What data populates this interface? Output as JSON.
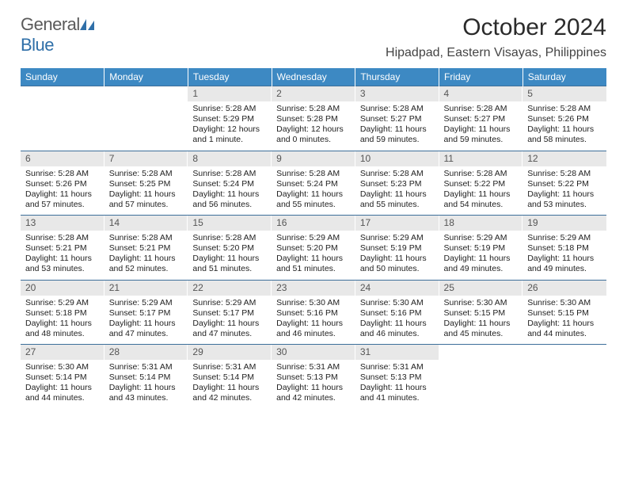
{
  "logo": {
    "text1": "General",
    "text2": "Blue"
  },
  "title": "October 2024",
  "location": "Hipadpad, Eastern Visayas, Philippines",
  "colors": {
    "header_bg": "#3d89c3",
    "header_fg": "#ffffff",
    "week_border": "#3d6f9a",
    "daynum_bg": "#e8e8e8",
    "daynum_fg": "#555555",
    "body_text": "#222222",
    "logo_gray": "#5a5a5a",
    "logo_blue": "#2f6fa8"
  },
  "columns": [
    "Sunday",
    "Monday",
    "Tuesday",
    "Wednesday",
    "Thursday",
    "Friday",
    "Saturday"
  ],
  "weeks": [
    [
      {
        "n": "",
        "sr": "",
        "ss": "",
        "dl1": "",
        "dl2": ""
      },
      {
        "n": "",
        "sr": "",
        "ss": "",
        "dl1": "",
        "dl2": ""
      },
      {
        "n": "1",
        "sr": "Sunrise: 5:28 AM",
        "ss": "Sunset: 5:29 PM",
        "dl1": "Daylight: 12 hours",
        "dl2": "and 1 minute."
      },
      {
        "n": "2",
        "sr": "Sunrise: 5:28 AM",
        "ss": "Sunset: 5:28 PM",
        "dl1": "Daylight: 12 hours",
        "dl2": "and 0 minutes."
      },
      {
        "n": "3",
        "sr": "Sunrise: 5:28 AM",
        "ss": "Sunset: 5:27 PM",
        "dl1": "Daylight: 11 hours",
        "dl2": "and 59 minutes."
      },
      {
        "n": "4",
        "sr": "Sunrise: 5:28 AM",
        "ss": "Sunset: 5:27 PM",
        "dl1": "Daylight: 11 hours",
        "dl2": "and 59 minutes."
      },
      {
        "n": "5",
        "sr": "Sunrise: 5:28 AM",
        "ss": "Sunset: 5:26 PM",
        "dl1": "Daylight: 11 hours",
        "dl2": "and 58 minutes."
      }
    ],
    [
      {
        "n": "6",
        "sr": "Sunrise: 5:28 AM",
        "ss": "Sunset: 5:26 PM",
        "dl1": "Daylight: 11 hours",
        "dl2": "and 57 minutes."
      },
      {
        "n": "7",
        "sr": "Sunrise: 5:28 AM",
        "ss": "Sunset: 5:25 PM",
        "dl1": "Daylight: 11 hours",
        "dl2": "and 57 minutes."
      },
      {
        "n": "8",
        "sr": "Sunrise: 5:28 AM",
        "ss": "Sunset: 5:24 PM",
        "dl1": "Daylight: 11 hours",
        "dl2": "and 56 minutes."
      },
      {
        "n": "9",
        "sr": "Sunrise: 5:28 AM",
        "ss": "Sunset: 5:24 PM",
        "dl1": "Daylight: 11 hours",
        "dl2": "and 55 minutes."
      },
      {
        "n": "10",
        "sr": "Sunrise: 5:28 AM",
        "ss": "Sunset: 5:23 PM",
        "dl1": "Daylight: 11 hours",
        "dl2": "and 55 minutes."
      },
      {
        "n": "11",
        "sr": "Sunrise: 5:28 AM",
        "ss": "Sunset: 5:22 PM",
        "dl1": "Daylight: 11 hours",
        "dl2": "and 54 minutes."
      },
      {
        "n": "12",
        "sr": "Sunrise: 5:28 AM",
        "ss": "Sunset: 5:22 PM",
        "dl1": "Daylight: 11 hours",
        "dl2": "and 53 minutes."
      }
    ],
    [
      {
        "n": "13",
        "sr": "Sunrise: 5:28 AM",
        "ss": "Sunset: 5:21 PM",
        "dl1": "Daylight: 11 hours",
        "dl2": "and 53 minutes."
      },
      {
        "n": "14",
        "sr": "Sunrise: 5:28 AM",
        "ss": "Sunset: 5:21 PM",
        "dl1": "Daylight: 11 hours",
        "dl2": "and 52 minutes."
      },
      {
        "n": "15",
        "sr": "Sunrise: 5:28 AM",
        "ss": "Sunset: 5:20 PM",
        "dl1": "Daylight: 11 hours",
        "dl2": "and 51 minutes."
      },
      {
        "n": "16",
        "sr": "Sunrise: 5:29 AM",
        "ss": "Sunset: 5:20 PM",
        "dl1": "Daylight: 11 hours",
        "dl2": "and 51 minutes."
      },
      {
        "n": "17",
        "sr": "Sunrise: 5:29 AM",
        "ss": "Sunset: 5:19 PM",
        "dl1": "Daylight: 11 hours",
        "dl2": "and 50 minutes."
      },
      {
        "n": "18",
        "sr": "Sunrise: 5:29 AM",
        "ss": "Sunset: 5:19 PM",
        "dl1": "Daylight: 11 hours",
        "dl2": "and 49 minutes."
      },
      {
        "n": "19",
        "sr": "Sunrise: 5:29 AM",
        "ss": "Sunset: 5:18 PM",
        "dl1": "Daylight: 11 hours",
        "dl2": "and 49 minutes."
      }
    ],
    [
      {
        "n": "20",
        "sr": "Sunrise: 5:29 AM",
        "ss": "Sunset: 5:18 PM",
        "dl1": "Daylight: 11 hours",
        "dl2": "and 48 minutes."
      },
      {
        "n": "21",
        "sr": "Sunrise: 5:29 AM",
        "ss": "Sunset: 5:17 PM",
        "dl1": "Daylight: 11 hours",
        "dl2": "and 47 minutes."
      },
      {
        "n": "22",
        "sr": "Sunrise: 5:29 AM",
        "ss": "Sunset: 5:17 PM",
        "dl1": "Daylight: 11 hours",
        "dl2": "and 47 minutes."
      },
      {
        "n": "23",
        "sr": "Sunrise: 5:30 AM",
        "ss": "Sunset: 5:16 PM",
        "dl1": "Daylight: 11 hours",
        "dl2": "and 46 minutes."
      },
      {
        "n": "24",
        "sr": "Sunrise: 5:30 AM",
        "ss": "Sunset: 5:16 PM",
        "dl1": "Daylight: 11 hours",
        "dl2": "and 46 minutes."
      },
      {
        "n": "25",
        "sr": "Sunrise: 5:30 AM",
        "ss": "Sunset: 5:15 PM",
        "dl1": "Daylight: 11 hours",
        "dl2": "and 45 minutes."
      },
      {
        "n": "26",
        "sr": "Sunrise: 5:30 AM",
        "ss": "Sunset: 5:15 PM",
        "dl1": "Daylight: 11 hours",
        "dl2": "and 44 minutes."
      }
    ],
    [
      {
        "n": "27",
        "sr": "Sunrise: 5:30 AM",
        "ss": "Sunset: 5:14 PM",
        "dl1": "Daylight: 11 hours",
        "dl2": "and 44 minutes."
      },
      {
        "n": "28",
        "sr": "Sunrise: 5:31 AM",
        "ss": "Sunset: 5:14 PM",
        "dl1": "Daylight: 11 hours",
        "dl2": "and 43 minutes."
      },
      {
        "n": "29",
        "sr": "Sunrise: 5:31 AM",
        "ss": "Sunset: 5:14 PM",
        "dl1": "Daylight: 11 hours",
        "dl2": "and 42 minutes."
      },
      {
        "n": "30",
        "sr": "Sunrise: 5:31 AM",
        "ss": "Sunset: 5:13 PM",
        "dl1": "Daylight: 11 hours",
        "dl2": "and 42 minutes."
      },
      {
        "n": "31",
        "sr": "Sunrise: 5:31 AM",
        "ss": "Sunset: 5:13 PM",
        "dl1": "Daylight: 11 hours",
        "dl2": "and 41 minutes."
      },
      {
        "n": "",
        "sr": "",
        "ss": "",
        "dl1": "",
        "dl2": ""
      },
      {
        "n": "",
        "sr": "",
        "ss": "",
        "dl1": "",
        "dl2": ""
      }
    ]
  ]
}
